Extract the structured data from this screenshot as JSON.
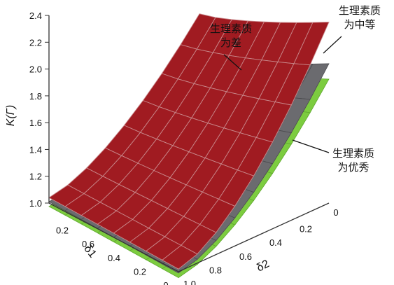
{
  "chart_data": {
    "type": "surface",
    "title": "",
    "zlabel": "K(Γ)",
    "xlabel": "δ1",
    "ylabel": "δ2",
    "z_ticks": [
      "2.4",
      "2.2",
      "2.0",
      "1.8",
      "1.6",
      "1.4",
      "1.2",
      "1.0"
    ],
    "x_ticks": [
      "0.2",
      "0.6",
      "0.4",
      "0.2",
      "0"
    ],
    "y_ticks": [
      "0",
      "0.2",
      "0.4",
      "0.6",
      "0.8",
      "1.0"
    ],
    "zlim": [
      1.0,
      2.4
    ],
    "series": [
      {
        "name": "生理素质为差",
        "color": "#a01b21",
        "corners": {
          "delta1_1_delta2_1": 1.04,
          "delta1_0_delta2_1": 1.02,
          "delta1_1_delta2_0": 1.9,
          "delta1_0_delta2_0": 2.35
        }
      },
      {
        "name": "生理素质为中等",
        "color": "#6b6b6f",
        "corners": {
          "delta1_1_delta2_1": 1.02,
          "delta1_0_delta2_1": 1.0,
          "delta1_1_delta2_0": 1.6,
          "delta1_0_delta2_0": 2.05
        }
      },
      {
        "name": "生理素质为优秀",
        "color": "#7ccc3f",
        "corners": {
          "delta1_1_delta2_1": 1.0,
          "delta1_0_delta2_1": 0.98,
          "delta1_1_delta2_0": 1.55,
          "delta1_0_delta2_0": 1.95
        }
      }
    ],
    "annotations": [
      {
        "lines": [
          "生理素质",
          "为差"
        ]
      },
      {
        "lines": [
          "生理素质",
          "为中等"
        ]
      },
      {
        "lines": [
          "生理素质",
          "为优秀"
        ]
      }
    ]
  }
}
